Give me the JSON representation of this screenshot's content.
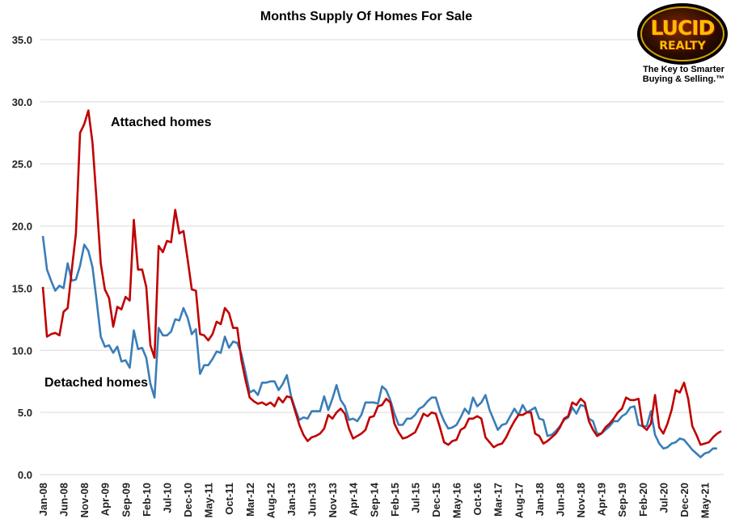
{
  "chart_data": {
    "type": "line",
    "title": "Months Supply Of Homes For Sale",
    "xlabel": "",
    "ylabel": "",
    "ylim": [
      0,
      35
    ],
    "yticks": [
      "0.0",
      "5.0",
      "10.0",
      "15.0",
      "20.0",
      "25.0",
      "30.0",
      "35.0"
    ],
    "xticks": [
      "Jan-08",
      "Jun-08",
      "Nov-08",
      "Apr-09",
      "Sep-09",
      "Feb-10",
      "Jul-10",
      "Dec-10",
      "May-11",
      "Oct-11",
      "Mar-12",
      "Aug-12",
      "Jan-13",
      "Jun-13",
      "Nov-13",
      "Apr-14",
      "Sep-14",
      "Feb-15",
      "Jul-15",
      "Dec-15",
      "May-16",
      "Oct-16",
      "Mar-17",
      "Aug-17",
      "Jan-18",
      "Jun-18",
      "Nov-18",
      "Apr-19",
      "Sep-19",
      "Feb-20",
      "Jul-20",
      "Dec-20",
      "May-21"
    ],
    "x_start": "Jan-08",
    "grid": true,
    "series": [
      {
        "name": "Attached homes",
        "color": "#c00000",
        "values": [
          15.1,
          11.1,
          11.3,
          11.4,
          11.2,
          13.1,
          13.4,
          16.5,
          19.4,
          27.5,
          28.2,
          29.3,
          26.7,
          22.0,
          17.0,
          14.9,
          14.2,
          11.9,
          13.5,
          13.3,
          14.3,
          14.0,
          20.5,
          16.5,
          16.5,
          15.1,
          10.4,
          9.4,
          18.4,
          17.9,
          18.8,
          18.7,
          21.3,
          19.4,
          19.6,
          17.3,
          14.9,
          14.8,
          11.3,
          11.2,
          10.8,
          11.3,
          12.3,
          12.1,
          13.4,
          13.0,
          11.8,
          11.8,
          9.2,
          7.6,
          6.2,
          5.9,
          5.7,
          5.8,
          5.6,
          5.8,
          5.5,
          6.2,
          5.8,
          6.3,
          6.2,
          5.1,
          4.0,
          3.2,
          2.7,
          3.0,
          3.1,
          3.3,
          3.7,
          4.8,
          4.5,
          5.0,
          5.3,
          4.9,
          3.7,
          2.9,
          3.1,
          3.3,
          3.6,
          4.6,
          4.7,
          5.5,
          5.6,
          6.1,
          5.8,
          4.1,
          3.4,
          2.9,
          3.0,
          3.2,
          3.4,
          4.1,
          4.9,
          4.7,
          5.0,
          4.9,
          3.8,
          2.6,
          2.4,
          2.7,
          2.8,
          3.6,
          3.8,
          4.5,
          4.5,
          4.7,
          4.5,
          3.0,
          2.6,
          2.2,
          2.4,
          2.5,
          3.0,
          3.7,
          4.3,
          4.8,
          4.8,
          5.0,
          5.0,
          3.3,
          3.1,
          2.5,
          2.7,
          3.0,
          3.3,
          3.8,
          4.5,
          4.7,
          5.8,
          5.6,
          6.1,
          5.8,
          4.3,
          3.6,
          3.1,
          3.3,
          3.8,
          4.1,
          4.5,
          5.0,
          5.3,
          6.2,
          6.0,
          6.0,
          6.1,
          3.9,
          3.6,
          4.1,
          6.4,
          3.8,
          3.3,
          4.1,
          5.2,
          6.8,
          6.6,
          7.4,
          6.1,
          3.9,
          3.2,
          2.4,
          2.5,
          2.6,
          3.0,
          3.3,
          3.5
        ]
      },
      {
        "name": "Detached homes",
        "color": "#3a7db8",
        "values": [
          19.2,
          16.5,
          15.6,
          14.8,
          15.2,
          15.0,
          17.0,
          15.6,
          15.7,
          16.8,
          18.5,
          18.0,
          16.7,
          14.0,
          11.1,
          10.3,
          10.4,
          9.8,
          10.3,
          9.1,
          9.2,
          8.6,
          11.6,
          10.1,
          10.2,
          9.4,
          7.3,
          6.2,
          11.8,
          11.2,
          11.2,
          11.5,
          12.5,
          12.4,
          13.4,
          12.6,
          11.3,
          11.7,
          8.1,
          8.8,
          8.8,
          9.3,
          9.9,
          9.8,
          11.1,
          10.2,
          10.7,
          10.6,
          9.7,
          8.2,
          6.6,
          6.8,
          6.4,
          7.4,
          7.4,
          7.5,
          7.5,
          6.8,
          7.3,
          8.0,
          6.3,
          5.3,
          4.4,
          4.6,
          4.5,
          5.1,
          5.1,
          5.1,
          6.3,
          5.2,
          6.1,
          7.2,
          6.0,
          5.5,
          4.4,
          4.5,
          4.3,
          4.8,
          5.8,
          5.8,
          5.8,
          5.7,
          7.1,
          6.8,
          6.0,
          4.9,
          4.0,
          4.0,
          4.5,
          4.5,
          4.8,
          5.3,
          5.5,
          5.9,
          6.2,
          6.2,
          5.1,
          4.3,
          3.7,
          3.8,
          4.0,
          4.6,
          5.3,
          4.9,
          6.2,
          5.5,
          5.8,
          6.4,
          5.2,
          4.4,
          3.6,
          4.0,
          4.1,
          4.7,
          5.3,
          4.8,
          5.6,
          5.0,
          5.2,
          5.4,
          4.5,
          4.4,
          3.1,
          3.2,
          3.5,
          3.9,
          4.4,
          4.6,
          5.4,
          4.9,
          5.6,
          5.5,
          4.5,
          4.3,
          3.3,
          3.3,
          3.6,
          3.9,
          4.3,
          4.3,
          4.7,
          4.9,
          5.4,
          5.5,
          4.0,
          3.9,
          3.9,
          5.1,
          3.2,
          2.5,
          2.1,
          2.2,
          2.5,
          2.6,
          2.9,
          2.8,
          2.4,
          2.0,
          1.7,
          1.4,
          1.7,
          1.8,
          2.1,
          2.1
        ]
      }
    ]
  },
  "logo": {
    "brand": "LUCID",
    "brand_sub": "REALTY",
    "tagline_line1": "The Key to Smarter",
    "tagline_line2": "Buying & Selling.™"
  }
}
